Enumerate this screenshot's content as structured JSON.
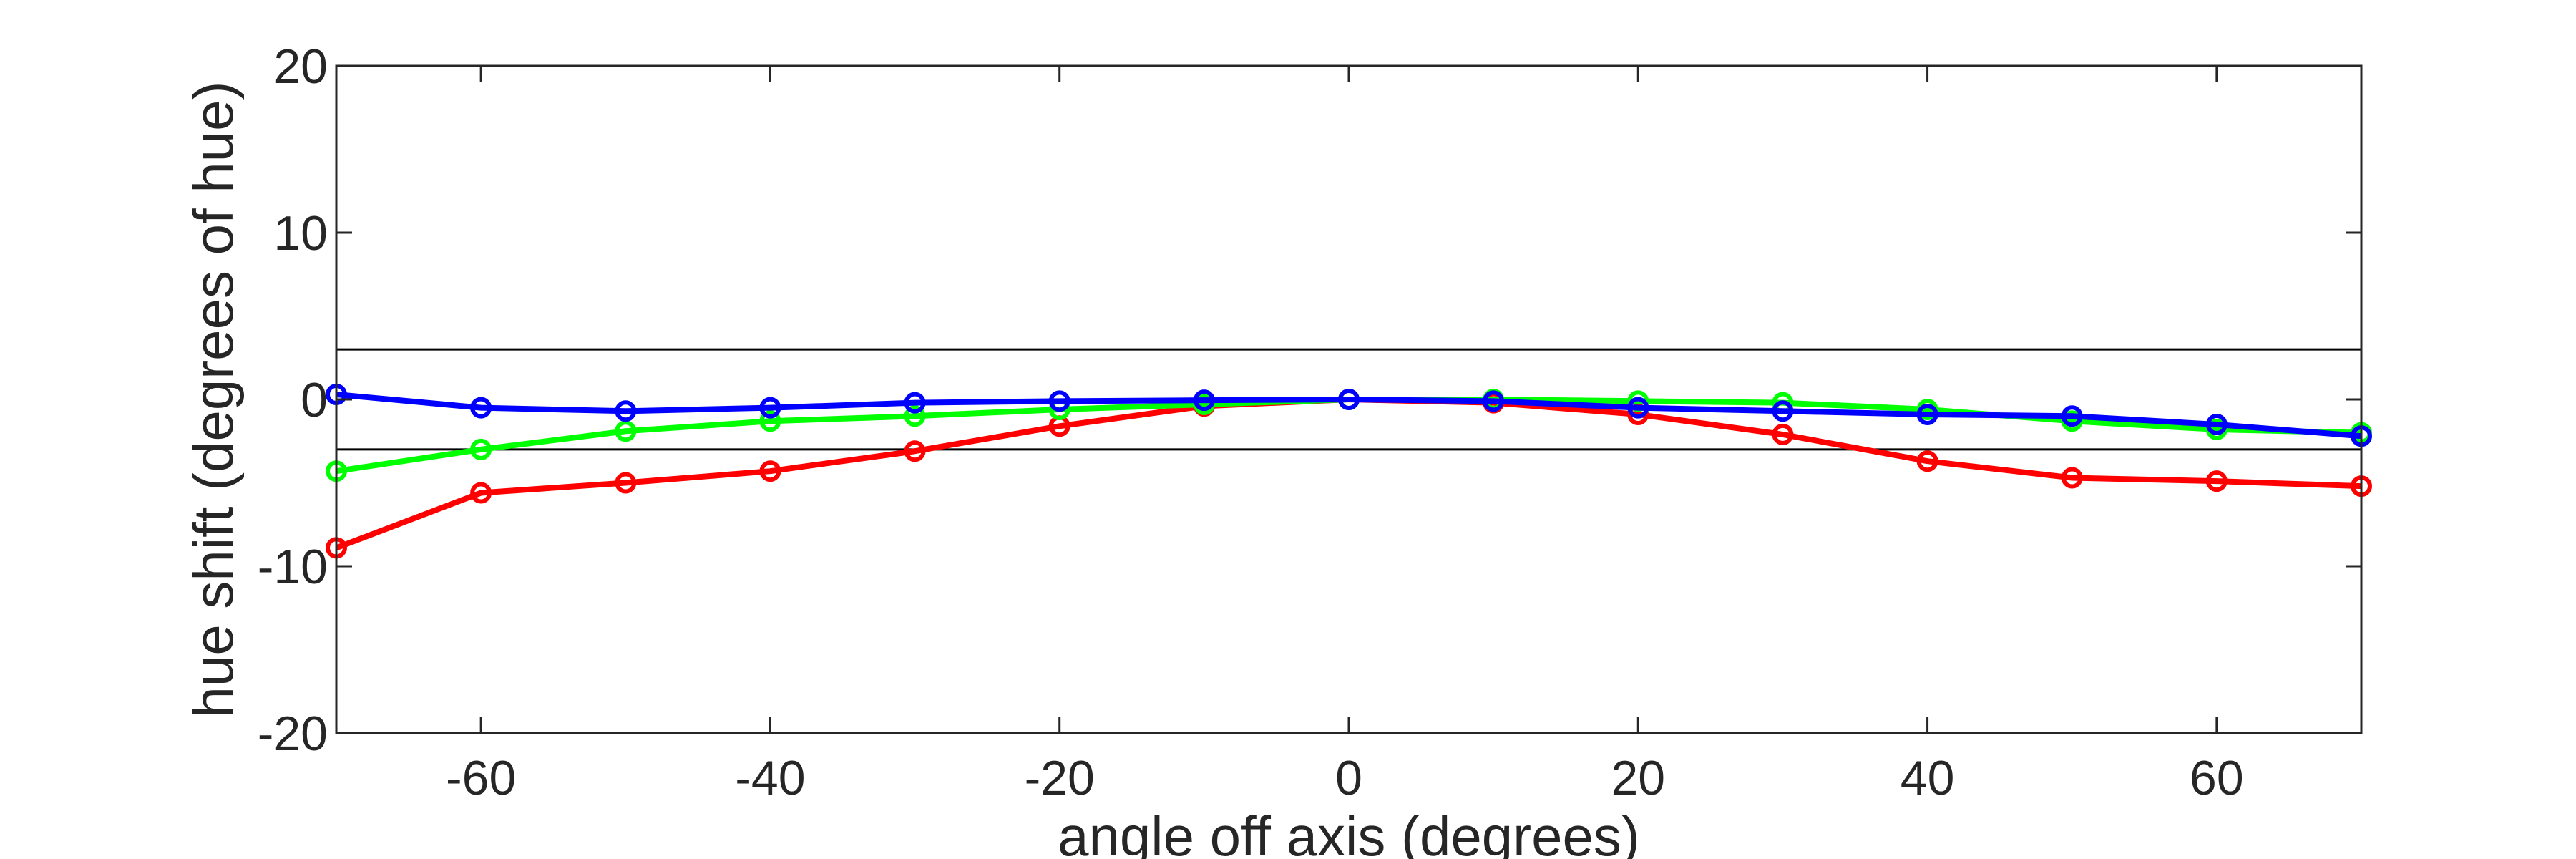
{
  "chart_data": {
    "type": "line",
    "xlabel": "angle off axis (degrees)",
    "ylabel": "hue shift (degrees of hue)",
    "xlim": [
      -70,
      70
    ],
    "ylim": [
      -20,
      20
    ],
    "xticks": [
      -60,
      -40,
      -20,
      0,
      20,
      40,
      60
    ],
    "yticks": [
      -20,
      -10,
      0,
      10,
      20
    ],
    "reference_lines": [
      3,
      -3
    ],
    "grid": false,
    "x": [
      -70,
      -60,
      -50,
      -40,
      -30,
      -20,
      -10,
      0,
      10,
      20,
      30,
      40,
      50,
      60,
      70
    ],
    "series": [
      {
        "color": "#ff0000",
        "values": [
          -8.9,
          -5.6,
          -5.0,
          -4.3,
          -3.1,
          -1.6,
          -0.4,
          0,
          -0.2,
          -0.9,
          -2.1,
          -3.7,
          -4.7,
          -4.9,
          -5.2
        ]
      },
      {
        "color": "#00ff00",
        "values": [
          -4.3,
          -3.0,
          -1.9,
          -1.3,
          -1.0,
          -0.6,
          -0.3,
          0,
          0.0,
          -0.1,
          -0.2,
          -0.6,
          -1.3,
          -1.8,
          -2.0
        ]
      },
      {
        "color": "#0000ff",
        "values": [
          0.3,
          -0.5,
          -0.7,
          -0.5,
          -0.2,
          -0.1,
          -0.05,
          0,
          -0.1,
          -0.5,
          -0.7,
          -0.9,
          -1.0,
          -1.5,
          -2.2
        ]
      }
    ]
  }
}
